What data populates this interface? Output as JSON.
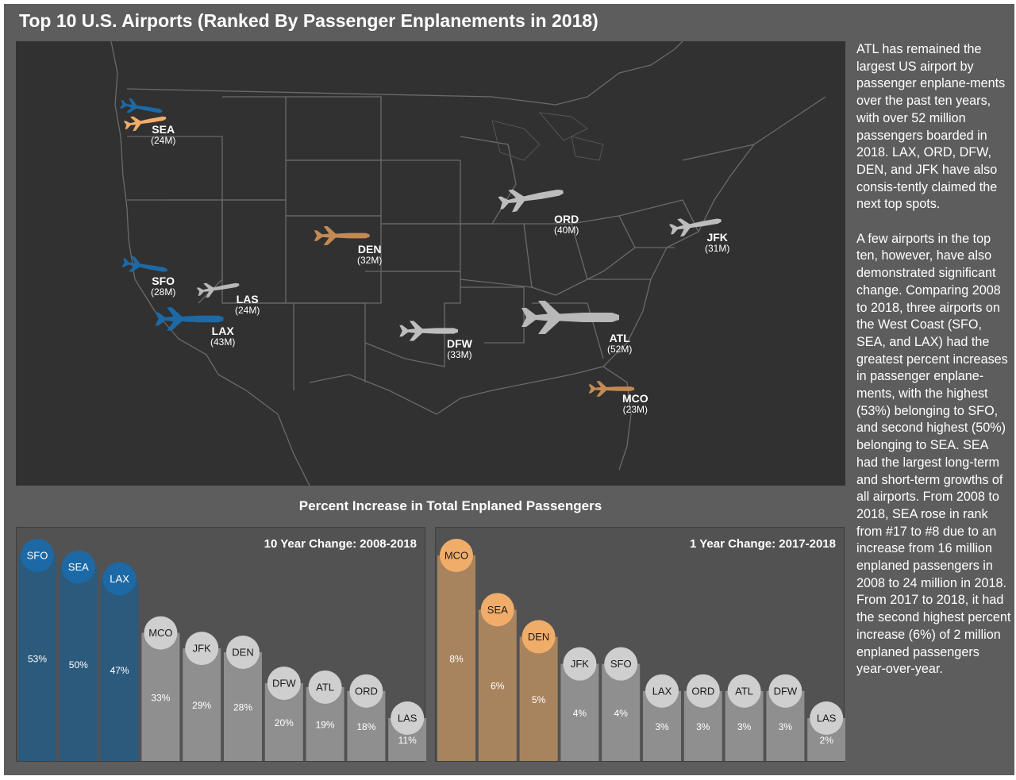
{
  "title": "Top 10 U.S. Airports (Ranked By Passenger Enplanements in 2018)",
  "colors": {
    "background": "#5d5d5d",
    "map_bg": "#313131",
    "blue": "#1c69a6",
    "blue_bar": "#2c5a7c",
    "orange": "#f0ad6a",
    "orange_bar": "#a8845e",
    "gray": "#cfcfcf",
    "gray_bar": "#8f8f8f"
  },
  "map": {
    "airports": [
      {
        "code": "SEA",
        "value": "(24M)",
        "color": "orange"
      },
      {
        "code": "SFO",
        "value": "(28M)",
        "color": "blue"
      },
      {
        "code": "LAX",
        "value": "(43M)",
        "color": "blue"
      },
      {
        "code": "LAS",
        "value": "(24M)",
        "color": "gray"
      },
      {
        "code": "DEN",
        "value": "(32M)",
        "color": "orange"
      },
      {
        "code": "DFW",
        "value": "(33M)",
        "color": "gray"
      },
      {
        "code": "ORD",
        "value": "(40M)",
        "color": "gray"
      },
      {
        "code": "ATL",
        "value": "(52M)",
        "color": "gray"
      },
      {
        "code": "JFK",
        "value": "(31M)",
        "color": "gray"
      },
      {
        "code": "MCO",
        "value": "(23M)",
        "color": "orange"
      }
    ]
  },
  "side_text": {
    "p1": "ATL has remained the largest US airport by passenger enplane-ments over the past ten years, with over 52 million passengers boarded in 2018. LAX, ORD, DFW, DEN, and JFK have also consis-tently claimed the next top spots.",
    "p2": "A few airports in the top ten, however, have also demonstrated significant change. Comparing 2008 to 2018, three airports on the West Coast (SFO, SEA, and LAX) had the greatest percent increases in passenger enplane-ments, with the highest (53%) belonging to SFO, and second highest (50%) belonging to SEA. SEA had the largest long-term and short-term growths of all airports. From 2008 to 2018, SEA rose in rank from #17 to #8 due to an increase from 16 million enplaned passengers in 2008 to 24 million in 2018. From 2017 to 2018, it had the second highest percent increase (6%) of 2 million enplaned passengers year-over-year."
  },
  "chart_section_title": "Percent Increase in Total Enplaned Passengers",
  "chart_data": [
    {
      "type": "bar",
      "title": "10 Year Change: 2008-2018",
      "categories": [
        "SFO",
        "SEA",
        "LAX",
        "MCO",
        "JFK",
        "DEN",
        "DFW",
        "ATL",
        "ORD",
        "LAS"
      ],
      "values": [
        53,
        50,
        47,
        33,
        29,
        28,
        20,
        19,
        18,
        11
      ],
      "labels": [
        "53%",
        "50%",
        "47%",
        "33%",
        "29%",
        "28%",
        "20%",
        "19%",
        "18%",
        "11%"
      ],
      "highlight": [
        "blue",
        "blue",
        "blue",
        "gray",
        "gray",
        "gray",
        "gray",
        "gray",
        "gray",
        "gray"
      ],
      "ylim": [
        0,
        60
      ],
      "xlabel": "",
      "ylabel": ""
    },
    {
      "type": "bar",
      "title": "1 Year Change: 2017-2018",
      "categories": [
        "MCO",
        "SEA",
        "DEN",
        "JFK",
        "SFO",
        "LAX",
        "ORD",
        "ATL",
        "DFW",
        "LAS"
      ],
      "values": [
        8,
        6,
        5,
        4,
        4,
        3,
        3,
        3,
        3,
        2
      ],
      "labels": [
        "8%",
        "6%",
        "5%",
        "4%",
        "4%",
        "3%",
        "3%",
        "3%",
        "3%",
        "2%"
      ],
      "highlight": [
        "orange",
        "orange",
        "orange",
        "gray",
        "gray",
        "gray",
        "gray",
        "gray",
        "gray",
        "gray"
      ],
      "ylim": [
        0,
        9
      ],
      "xlabel": "",
      "ylabel": ""
    }
  ]
}
